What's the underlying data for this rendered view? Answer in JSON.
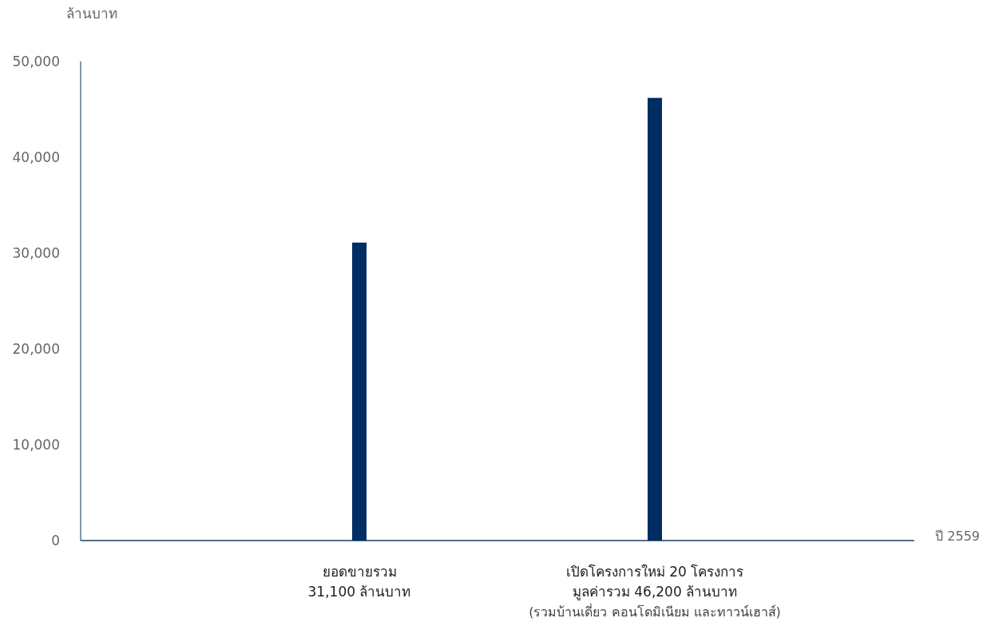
{
  "chart_data": {
    "type": "bar",
    "ylabel": "ล้านบาท",
    "xlabel": "ปี 2559",
    "categories": [
      "ยอดขายรวม\n31,100 ล้านบาท",
      "เปิดโครงการใหม่ 20 โครงการ\nมูลค่ารวม 46,200 ล้านบาท\n(รวมบ้านเดี่ยว คอนโดมิเนียม และทาวน์เฮาส์)"
    ],
    "values": [
      31100,
      46200
    ],
    "color": "#002d62",
    "ylim": [
      0,
      50000
    ],
    "yticks": [
      {
        "value": 0,
        "label": "0"
      },
      {
        "value": 10000,
        "label": "10,000"
      },
      {
        "value": 20000,
        "label": "20,000"
      },
      {
        "value": 30000,
        "label": "30,000"
      },
      {
        "value": 40000,
        "label": "40,000"
      },
      {
        "value": 50000,
        "label": "50,000"
      }
    ],
    "grid": false
  }
}
